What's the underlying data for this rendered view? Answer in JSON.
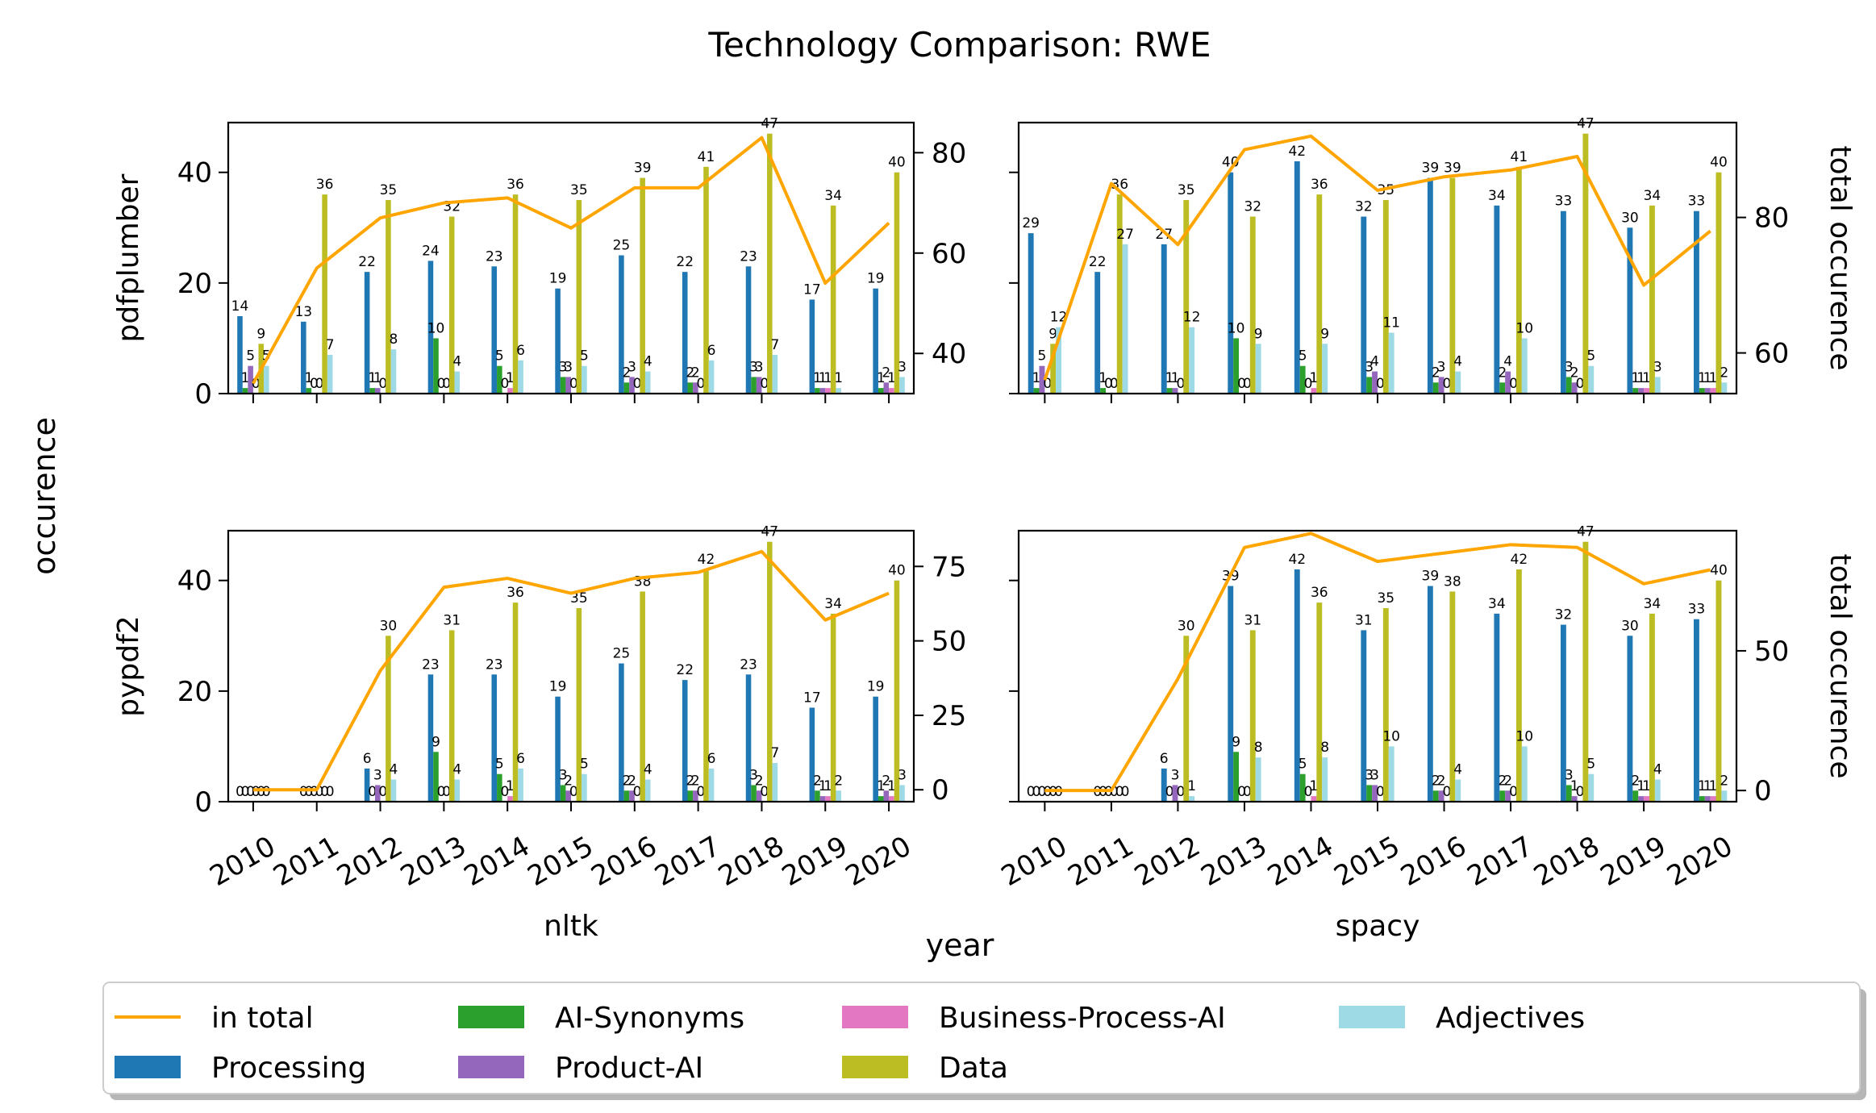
{
  "title": "Technology Comparison: RWE",
  "ylabel": "occurence",
  "xlabel": "year",
  "right_ylabel": "total occurence",
  "colors": {
    "in total": "#ffa500",
    "Processing": "#1f77b4",
    "AI-Synonyms": "#2ca02c",
    "Product-AI": "#9467bd",
    "Business-Process-AI": "#e377c2",
    "Data": "#bcbd22",
    "Adjectives": "#9edae5"
  },
  "legend": {
    "placement": "bottom-center",
    "entries": [
      "in total",
      "Processing",
      "AI-Synonyms",
      "Product-AI",
      "Business-Process-AI",
      "Data",
      "Adjectives"
    ]
  },
  "chart_data": [
    {
      "type": "bar",
      "panel": "top-left",
      "row_label": "pdfplumber",
      "col_label": "",
      "categories": [
        "2010",
        "2011",
        "2012",
        "2013",
        "2014",
        "2015",
        "2016",
        "2017",
        "2018",
        "2019",
        "2020"
      ],
      "ylim": [
        0,
        49
      ],
      "yticks": [
        0,
        20,
        40
      ],
      "right_ylim": [
        32,
        86
      ],
      "right_yticks": [
        40,
        60,
        80
      ],
      "series": [
        {
          "name": "Processing",
          "values": [
            14,
            13,
            22,
            24,
            23,
            19,
            25,
            22,
            23,
            17,
            19
          ]
        },
        {
          "name": "AI-Synonyms",
          "values": [
            1,
            1,
            1,
            10,
            5,
            3,
            2,
            2,
            3,
            1,
            1
          ]
        },
        {
          "name": "Product-AI",
          "values": [
            5,
            0,
            1,
            0,
            0,
            3,
            3,
            2,
            3,
            1,
            2
          ]
        },
        {
          "name": "Business-Process-AI",
          "values": [
            0,
            0,
            0,
            0,
            1,
            0,
            0,
            0,
            0,
            1,
            1
          ]
        },
        {
          "name": "Data",
          "values": [
            9,
            36,
            35,
            32,
            36,
            35,
            39,
            41,
            47,
            34,
            40
          ]
        },
        {
          "name": "Adjectives",
          "values": [
            5,
            7,
            8,
            4,
            6,
            5,
            4,
            6,
            7,
            1,
            3
          ]
        }
      ],
      "total": [
        34,
        57,
        67,
        70,
        71,
        65,
        73,
        73,
        83,
        54,
        66
      ]
    },
    {
      "type": "bar",
      "panel": "top-right",
      "row_label": "",
      "col_label": "",
      "categories": [
        "2010",
        "2011",
        "2012",
        "2013",
        "2014",
        "2015",
        "2016",
        "2017",
        "2018",
        "2019",
        "2020"
      ],
      "ylim": [
        0,
        49
      ],
      "yticks": [],
      "right_ylim": [
        54,
        94
      ],
      "right_yticks": [
        60,
        80
      ],
      "series": [
        {
          "name": "Processing",
          "values": [
            29,
            22,
            27,
            40,
            42,
            32,
            39,
            34,
            33,
            30,
            33
          ]
        },
        {
          "name": "AI-Synonyms",
          "values": [
            1,
            1,
            1,
            10,
            5,
            3,
            2,
            2,
            3,
            1,
            1
          ]
        },
        {
          "name": "Product-AI",
          "values": [
            5,
            0,
            1,
            0,
            0,
            4,
            3,
            4,
            2,
            1,
            1
          ]
        },
        {
          "name": "Business-Process-AI",
          "values": [
            0,
            0,
            0,
            0,
            1,
            0,
            0,
            0,
            0,
            1,
            1
          ]
        },
        {
          "name": "Data",
          "values": [
            9,
            36,
            35,
            32,
            36,
            35,
            39,
            41,
            47,
            34,
            40
          ]
        },
        {
          "name": "Adjectives",
          "values": [
            12,
            27,
            12,
            9,
            9,
            11,
            4,
            10,
            5,
            3,
            2
          ]
        }
      ],
      "total": [
        56,
        85,
        76,
        90,
        92,
        84,
        86,
        87,
        89,
        70,
        78
      ]
    },
    {
      "type": "bar",
      "panel": "bottom-left",
      "row_label": "pypdf2",
      "col_label": "nltk",
      "categories": [
        "2010",
        "2011",
        "2012",
        "2013",
        "2014",
        "2015",
        "2016",
        "2017",
        "2018",
        "2019",
        "2020"
      ],
      "ylim": [
        0,
        49
      ],
      "yticks": [
        0,
        20,
        40
      ],
      "right_ylim": [
        -4,
        87
      ],
      "right_yticks": [
        0,
        25,
        50,
        75
      ],
      "series": [
        {
          "name": "Processing",
          "values": [
            0,
            0,
            6,
            23,
            23,
            19,
            25,
            22,
            23,
            17,
            19
          ]
        },
        {
          "name": "AI-Synonyms",
          "values": [
            0,
            0,
            0,
            9,
            5,
            3,
            2,
            2,
            3,
            2,
            1
          ]
        },
        {
          "name": "Product-AI",
          "values": [
            0,
            0,
            3,
            0,
            0,
            2,
            2,
            2,
            2,
            1,
            2
          ]
        },
        {
          "name": "Business-Process-AI",
          "values": [
            0,
            0,
            0,
            0,
            1,
            0,
            0,
            0,
            0,
            1,
            1
          ]
        },
        {
          "name": "Data",
          "values": [
            0,
            0,
            30,
            31,
            36,
            35,
            38,
            42,
            47,
            34,
            40
          ]
        },
        {
          "name": "Adjectives",
          "values": [
            0,
            0,
            4,
            4,
            6,
            5,
            4,
            6,
            7,
            2,
            3
          ]
        }
      ],
      "total": [
        0,
        0,
        40,
        68,
        71,
        66,
        71,
        73,
        80,
        57,
        66
      ]
    },
    {
      "type": "bar",
      "panel": "bottom-right",
      "row_label": "",
      "col_label": "spacy",
      "categories": [
        "2010",
        "2011",
        "2012",
        "2013",
        "2014",
        "2015",
        "2016",
        "2017",
        "2018",
        "2019",
        "2020"
      ],
      "ylim": [
        0,
        49
      ],
      "yticks": [],
      "right_ylim": [
        -4,
        93
      ],
      "right_yticks": [
        0,
        50
      ],
      "series": [
        {
          "name": "Processing",
          "values": [
            0,
            0,
            6,
            39,
            42,
            31,
            39,
            34,
            32,
            30,
            33
          ]
        },
        {
          "name": "AI-Synonyms",
          "values": [
            0,
            0,
            0,
            9,
            5,
            3,
            2,
            2,
            3,
            2,
            1
          ]
        },
        {
          "name": "Product-AI",
          "values": [
            0,
            0,
            3,
            0,
            0,
            3,
            2,
            2,
            1,
            1,
            1
          ]
        },
        {
          "name": "Business-Process-AI",
          "values": [
            0,
            0,
            0,
            0,
            1,
            0,
            0,
            0,
            0,
            1,
            1
          ]
        },
        {
          "name": "Data",
          "values": [
            0,
            0,
            30,
            31,
            36,
            35,
            38,
            42,
            47,
            34,
            40
          ]
        },
        {
          "name": "Adjectives",
          "values": [
            0,
            0,
            1,
            8,
            8,
            10,
            4,
            10,
            5,
            4,
            2
          ]
        }
      ],
      "total": [
        0,
        0,
        40,
        87,
        92,
        82,
        85,
        88,
        87,
        74,
        79
      ]
    }
  ]
}
